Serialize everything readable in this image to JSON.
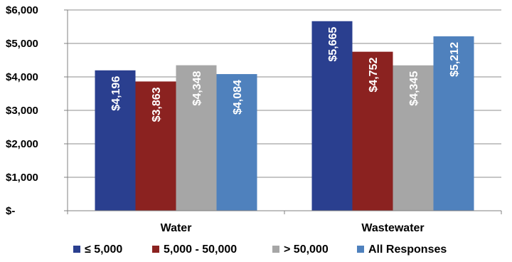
{
  "chart_data": {
    "type": "bar",
    "categories": [
      "Water",
      "Wastewater"
    ],
    "series": [
      {
        "name": "≤ 5,000",
        "color": "#2a3f8f",
        "values": [
          4196,
          5665
        ],
        "labels": [
          "$4,196",
          "$5,665"
        ]
      },
      {
        "name": "5,000 - 50,000",
        "color": "#8b2220",
        "values": [
          3863,
          4752
        ],
        "labels": [
          "$3,863",
          "$4,752"
        ]
      },
      {
        "name": "> 50,000",
        "color": "#a6a6a6",
        "values": [
          4348,
          4345
        ],
        "labels": [
          "$4,348",
          "$4,345"
        ]
      },
      {
        "name": "All Responses",
        "color": "#4f81bd",
        "values": [
          4084,
          5212
        ],
        "labels": [
          "$4,084",
          "$5,212"
        ]
      }
    ],
    "yticks": [
      0,
      1000,
      2000,
      3000,
      4000,
      5000,
      6000
    ],
    "ytick_labels": [
      "$-",
      "$1,000",
      "$2,000",
      "$3,000",
      "$4,000",
      "$5,000",
      "$6,000"
    ],
    "ylim": [
      0,
      6000
    ],
    "grid": true,
    "legend_position": "bottom"
  }
}
